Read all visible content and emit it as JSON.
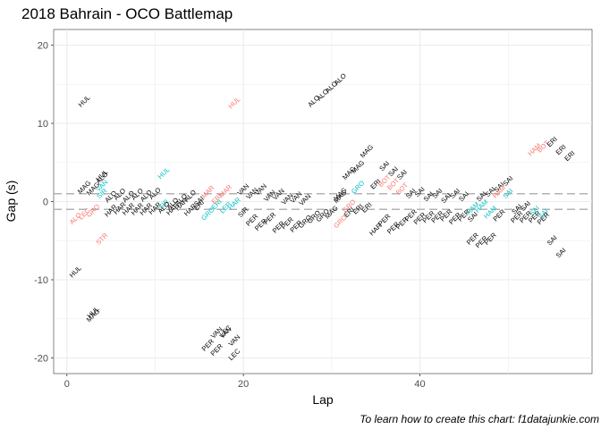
{
  "chart_data": {
    "type": "scatter",
    "title": "2018 Bahrain - OCO Battlemap",
    "xlabel": "Lap",
    "ylabel": "Gap (s)",
    "caption": "To learn how to create this chart: f1datajunkie.com",
    "xlim": [
      -1.5,
      59.5
    ],
    "ylim": [
      -22,
      22
    ],
    "x_ticks": [
      0,
      20,
      40
    ],
    "y_ticks": [
      -20,
      -10,
      0,
      10,
      20
    ],
    "grid": true,
    "legend": "none",
    "reference_lines": [
      1,
      -1
    ],
    "colors": {
      "black": "#000000",
      "red": "#f8766d",
      "teal": "#00bfc4",
      "grid": "#ebebeb",
      "reflines": "#b3b3b3"
    },
    "points": [
      {
        "x": 2,
        "y": 12.8,
        "label": "HUL",
        "color": "black"
      },
      {
        "x": 1,
        "y": -9,
        "label": "HUL",
        "color": "black"
      },
      {
        "x": 3,
        "y": -14.2,
        "label": "HUL",
        "color": "black"
      },
      {
        "x": 3,
        "y": -14.6,
        "label": "MAG",
        "color": "black"
      },
      {
        "x": 2,
        "y": 1.8,
        "label": "MAG",
        "color": "black"
      },
      {
        "x": 3,
        "y": 1.6,
        "label": "MAG",
        "color": "black"
      },
      {
        "x": 4,
        "y": 2,
        "label": "VAN",
        "color": "teal"
      },
      {
        "x": 4,
        "y": 1.0,
        "label": "SIR",
        "color": "teal"
      },
      {
        "x": 4,
        "y": 3.3,
        "label": "HUL",
        "color": "black"
      },
      {
        "x": 4,
        "y": 3.0,
        "label": "ALO",
        "color": "black"
      },
      {
        "x": 1,
        "y": -2.2,
        "label": "ALO",
        "color": "red"
      },
      {
        "x": 2,
        "y": -1.6,
        "label": "LEC",
        "color": "red"
      },
      {
        "x": 3,
        "y": -1.2,
        "label": "GRO",
        "color": "red"
      },
      {
        "x": 4,
        "y": -4.8,
        "label": "STR",
        "color": "red"
      },
      {
        "x": 5,
        "y": 0.6,
        "label": "ALO",
        "color": "black"
      },
      {
        "x": 5,
        "y": -1.2,
        "label": "HAR",
        "color": "black"
      },
      {
        "x": 6,
        "y": 0.9,
        "label": "ALO",
        "color": "black"
      },
      {
        "x": 6,
        "y": -0.9,
        "label": "HAR",
        "color": "black"
      },
      {
        "x": 7,
        "y": 0.6,
        "label": "ALO",
        "color": "black"
      },
      {
        "x": 7,
        "y": -1.0,
        "label": "HAR",
        "color": "black"
      },
      {
        "x": 8,
        "y": 0.9,
        "label": "ALO",
        "color": "black"
      },
      {
        "x": 8,
        "y": -1.0,
        "label": "HAR",
        "color": "black"
      },
      {
        "x": 9,
        "y": 0.7,
        "label": "ALO",
        "color": "black"
      },
      {
        "x": 9,
        "y": -1.0,
        "label": "HAR",
        "color": "black"
      },
      {
        "x": 10,
        "y": 1.0,
        "label": "ALO",
        "color": "black"
      },
      {
        "x": 10,
        "y": -0.9,
        "label": "HAR",
        "color": "black"
      },
      {
        "x": 11,
        "y": 3.6,
        "label": "HUL",
        "color": "teal"
      },
      {
        "x": 11,
        "y": -0.4,
        "label": "SIR",
        "color": "teal"
      },
      {
        "x": 11,
        "y": -0.8,
        "label": "ALO",
        "color": "black"
      },
      {
        "x": 12,
        "y": -0.3,
        "label": "ALO",
        "color": "black"
      },
      {
        "x": 12,
        "y": -1.0,
        "label": "HAR",
        "color": "black"
      },
      {
        "x": 13,
        "y": 0.2,
        "label": "ALO",
        "color": "black"
      },
      {
        "x": 13,
        "y": -0.4,
        "label": "HAR",
        "color": "black"
      },
      {
        "x": 14,
        "y": 0.7,
        "label": "ALO",
        "color": "black"
      },
      {
        "x": 14,
        "y": -1.1,
        "label": "HAR",
        "color": "black"
      },
      {
        "x": 15,
        "y": 0.0,
        "label": "SAI",
        "color": "black"
      },
      {
        "x": 15,
        "y": -0.5,
        "label": "ERI",
        "color": "black"
      },
      {
        "x": 16,
        "y": 1.2,
        "label": "MAR",
        "color": "red"
      },
      {
        "x": 16,
        "y": -1.6,
        "label": "GRO",
        "color": "teal"
      },
      {
        "x": 17,
        "y": -0.4,
        "label": "ERI",
        "color": "teal"
      },
      {
        "x": 17,
        "y": 0.3,
        "label": "ERI",
        "color": "red"
      },
      {
        "x": 18,
        "y": 1.3,
        "label": "MAR",
        "color": "red"
      },
      {
        "x": 18,
        "y": -0.8,
        "label": "LER",
        "color": "teal"
      },
      {
        "x": 19,
        "y": -0.3,
        "label": "HAR",
        "color": "teal"
      },
      {
        "x": 19,
        "y": 12.6,
        "label": "HUL",
        "color": "red"
      },
      {
        "x": 20,
        "y": 1.5,
        "label": "VAN",
        "color": "black"
      },
      {
        "x": 20,
        "y": -1.4,
        "label": "SIR",
        "color": "black"
      },
      {
        "x": 21,
        "y": 1.0,
        "label": "VAN",
        "color": "black"
      },
      {
        "x": 21,
        "y": -2.4,
        "label": "PER",
        "color": "black"
      },
      {
        "x": 22,
        "y": 1.5,
        "label": "VAN",
        "color": "black"
      },
      {
        "x": 22,
        "y": -3.0,
        "label": "PER",
        "color": "black"
      },
      {
        "x": 23,
        "y": 0.7,
        "label": "VAN",
        "color": "black"
      },
      {
        "x": 23,
        "y": -2.2,
        "label": "PER",
        "color": "black"
      },
      {
        "x": 24,
        "y": 0.9,
        "label": "VAN",
        "color": "black"
      },
      {
        "x": 24,
        "y": -3.3,
        "label": "PER",
        "color": "black"
      },
      {
        "x": 25,
        "y": 0.3,
        "label": "VAN",
        "color": "black"
      },
      {
        "x": 25,
        "y": -2.8,
        "label": "PER",
        "color": "black"
      },
      {
        "x": 26,
        "y": 0.5,
        "label": "VAN",
        "color": "black"
      },
      {
        "x": 26,
        "y": -3.2,
        "label": "PER",
        "color": "black"
      },
      {
        "x": 27,
        "y": -2.6,
        "label": "GRO",
        "color": "black"
      },
      {
        "x": 27,
        "y": 0.2,
        "label": "VAN",
        "color": "black"
      },
      {
        "x": 28,
        "y": -2.0,
        "label": "GRO",
        "color": "black"
      },
      {
        "x": 29,
        "y": -1.8,
        "label": "GRO",
        "color": "black"
      },
      {
        "x": 30,
        "y": -1.4,
        "label": "MAG",
        "color": "black"
      },
      {
        "x": 28,
        "y": 12.8,
        "label": "ALO",
        "color": "black"
      },
      {
        "x": 29,
        "y": 13.6,
        "label": "ALO",
        "color": "black"
      },
      {
        "x": 30,
        "y": 14.6,
        "label": "ALO",
        "color": "black"
      },
      {
        "x": 31,
        "y": 15.6,
        "label": "ALO",
        "color": "black"
      },
      {
        "x": 31,
        "y": 0.9,
        "label": "MAG",
        "color": "black"
      },
      {
        "x": 31,
        "y": 0.6,
        "label": "MAG",
        "color": "black"
      },
      {
        "x": 31,
        "y": -2.6,
        "label": "GRO",
        "color": "red"
      },
      {
        "x": 32,
        "y": -0.6,
        "label": "GRO",
        "color": "red"
      },
      {
        "x": 32,
        "y": -1.4,
        "label": "ERI",
        "color": "black"
      },
      {
        "x": 32,
        "y": 3.6,
        "label": "MAG",
        "color": "black"
      },
      {
        "x": 33,
        "y": 4.4,
        "label": "MAG",
        "color": "black"
      },
      {
        "x": 33,
        "y": 1.8,
        "label": "GRO",
        "color": "teal"
      },
      {
        "x": 33,
        "y": -1.0,
        "label": "ERI",
        "color": "black"
      },
      {
        "x": 34,
        "y": 6.4,
        "label": "MAG",
        "color": "black"
      },
      {
        "x": 34,
        "y": -0.8,
        "label": "ERI",
        "color": "black"
      },
      {
        "x": 35,
        "y": 2.2,
        "label": "ERI",
        "color": "black"
      },
      {
        "x": 35,
        "y": -3.6,
        "label": "HAR",
        "color": "black"
      },
      {
        "x": 36,
        "y": 4.5,
        "label": "SAI",
        "color": "black"
      },
      {
        "x": 36,
        "y": 2.6,
        "label": "BOT",
        "color": "red"
      },
      {
        "x": 36,
        "y": -2.4,
        "label": "PER",
        "color": "black"
      },
      {
        "x": 37,
        "y": 3.8,
        "label": "SAI",
        "color": "black"
      },
      {
        "x": 37,
        "y": 2.2,
        "label": "BOT",
        "color": "red"
      },
      {
        "x": 37,
        "y": -3.4,
        "label": "PER",
        "color": "black"
      },
      {
        "x": 38,
        "y": 3.4,
        "label": "SAI",
        "color": "black"
      },
      {
        "x": 38,
        "y": 1.6,
        "label": "BOT",
        "color": "red"
      },
      {
        "x": 38,
        "y": -2.8,
        "label": "PER",
        "color": "black"
      },
      {
        "x": 39,
        "y": 1.0,
        "label": "SAI",
        "color": "black"
      },
      {
        "x": 39,
        "y": -1.8,
        "label": "PER",
        "color": "black"
      },
      {
        "x": 40,
        "y": 1.2,
        "label": "SAI",
        "color": "black"
      },
      {
        "x": 40,
        "y": -2.2,
        "label": "PER",
        "color": "black"
      },
      {
        "x": 41,
        "y": 0.6,
        "label": "SAI",
        "color": "black"
      },
      {
        "x": 41,
        "y": -2.0,
        "label": "PER",
        "color": "black"
      },
      {
        "x": 42,
        "y": 1.0,
        "label": "SAI",
        "color": "black"
      },
      {
        "x": 42,
        "y": -2.0,
        "label": "PER",
        "color": "black"
      },
      {
        "x": 43,
        "y": 0.4,
        "label": "SAI",
        "color": "black"
      },
      {
        "x": 43,
        "y": -1.8,
        "label": "PER",
        "color": "black"
      },
      {
        "x": 44,
        "y": 1.0,
        "label": "SAI",
        "color": "black"
      },
      {
        "x": 44,
        "y": -2.2,
        "label": "PER",
        "color": "black"
      },
      {
        "x": 45,
        "y": 0.6,
        "label": "SAI",
        "color": "black"
      },
      {
        "x": 45,
        "y": -1.8,
        "label": "PER",
        "color": "black"
      },
      {
        "x": 46,
        "y": -0.9,
        "label": "HAM",
        "color": "teal"
      },
      {
        "x": 46,
        "y": -2.0,
        "label": "SAI",
        "color": "black"
      },
      {
        "x": 46,
        "y": -4.8,
        "label": "PER",
        "color": "black"
      },
      {
        "x": 47,
        "y": 0.6,
        "label": "SAI",
        "color": "black"
      },
      {
        "x": 47,
        "y": -0.6,
        "label": "HAM",
        "color": "teal"
      },
      {
        "x": 47,
        "y": -5.2,
        "label": "PER",
        "color": "black"
      },
      {
        "x": 48,
        "y": 1.2,
        "label": "SAI",
        "color": "black"
      },
      {
        "x": 48,
        "y": -1.4,
        "label": "HAM",
        "color": "teal"
      },
      {
        "x": 48,
        "y": -4.8,
        "label": "PER",
        "color": "black"
      },
      {
        "x": 49,
        "y": 1.8,
        "label": "SAI",
        "color": "black"
      },
      {
        "x": 49,
        "y": 1.2,
        "label": "HAM",
        "color": "red"
      },
      {
        "x": 49,
        "y": -1.8,
        "label": "PER",
        "color": "black"
      },
      {
        "x": 50,
        "y": 2.6,
        "label": "SAI",
        "color": "black"
      },
      {
        "x": 50,
        "y": 1.0,
        "label": "SAI",
        "color": "teal"
      },
      {
        "x": 51,
        "y": -1.0,
        "label": "SAI",
        "color": "black"
      },
      {
        "x": 51,
        "y": -2.0,
        "label": "PER",
        "color": "black"
      },
      {
        "x": 52,
        "y": -0.6,
        "label": "SAI",
        "color": "black"
      },
      {
        "x": 52,
        "y": -2.0,
        "label": "PER",
        "color": "black"
      },
      {
        "x": 53,
        "y": 6.6,
        "label": "HAM",
        "color": "red"
      },
      {
        "x": 53,
        "y": -1.2,
        "label": "SAI",
        "color": "teal"
      },
      {
        "x": 53,
        "y": -2.0,
        "label": "PER",
        "color": "black"
      },
      {
        "x": 54,
        "y": 7.0,
        "label": "BOT",
        "color": "red"
      },
      {
        "x": 54,
        "y": -1.6,
        "label": "SAI",
        "color": "teal"
      },
      {
        "x": 54,
        "y": -2.2,
        "label": "PER",
        "color": "black"
      },
      {
        "x": 55,
        "y": 7.6,
        "label": "ERI",
        "color": "black"
      },
      {
        "x": 55,
        "y": -5.0,
        "label": "SAI",
        "color": "black"
      },
      {
        "x": 56,
        "y": 6.6,
        "label": "ERI",
        "color": "black"
      },
      {
        "x": 56,
        "y": -6.6,
        "label": "SAI",
        "color": "black"
      },
      {
        "x": 57,
        "y": 5.8,
        "label": "ERI",
        "color": "black"
      },
      {
        "x": 16,
        "y": -18.4,
        "label": "PER",
        "color": "black"
      },
      {
        "x": 17,
        "y": -16.8,
        "label": "VAN",
        "color": "black"
      },
      {
        "x": 17,
        "y": -19.0,
        "label": "PER",
        "color": "black"
      },
      {
        "x": 18,
        "y": -16.6,
        "label": "LEC",
        "color": "black"
      },
      {
        "x": 18,
        "y": -16.8,
        "label": "VAN",
        "color": "black"
      },
      {
        "x": 19,
        "y": -17.8,
        "label": "VAN",
        "color": "black"
      },
      {
        "x": 19,
        "y": -19.6,
        "label": "LEC",
        "color": "black"
      }
    ]
  }
}
